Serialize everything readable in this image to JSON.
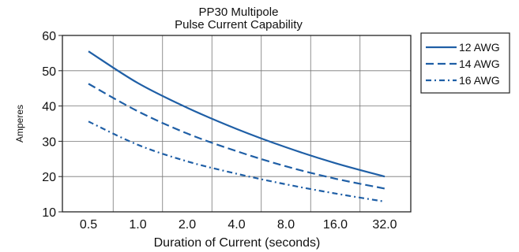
{
  "chart_data": {
    "type": "line",
    "title_lines": [
      "PP30 Multipole",
      "Pulse Current Capability"
    ],
    "xlabel": "Duration of Current (seconds)",
    "ylabel": "Amperes",
    "x_scale": "log2",
    "x": [
      0.5,
      1.0,
      2.0,
      4.0,
      8.0,
      16.0,
      32.0
    ],
    "x_tick_labels": [
      "0.5",
      "1.0",
      "2.0",
      "4.0",
      "8.0",
      "16.0",
      "32.0"
    ],
    "ylim": [
      10,
      60
    ],
    "y_ticks": [
      10,
      20,
      30,
      40,
      50,
      60
    ],
    "grid": true,
    "legend_position": "right",
    "series": [
      {
        "name": "12 AWG",
        "values": [
          55.5,
          46.5,
          39.5,
          33.5,
          28.3,
          23.8,
          20.0
        ],
        "line_style": "solid",
        "color": "#1f5fa6"
      },
      {
        "name": "14 AWG",
        "values": [
          46.3,
          38.5,
          32.2,
          27.2,
          22.9,
          19.4,
          16.6
        ],
        "line_style": "dashed",
        "color": "#1f5fa6"
      },
      {
        "name": "16 AWG",
        "values": [
          35.6,
          29.0,
          24.3,
          20.8,
          17.8,
          15.2,
          12.9
        ],
        "line_style": "dashdot",
        "color": "#1f5fa6"
      }
    ]
  }
}
